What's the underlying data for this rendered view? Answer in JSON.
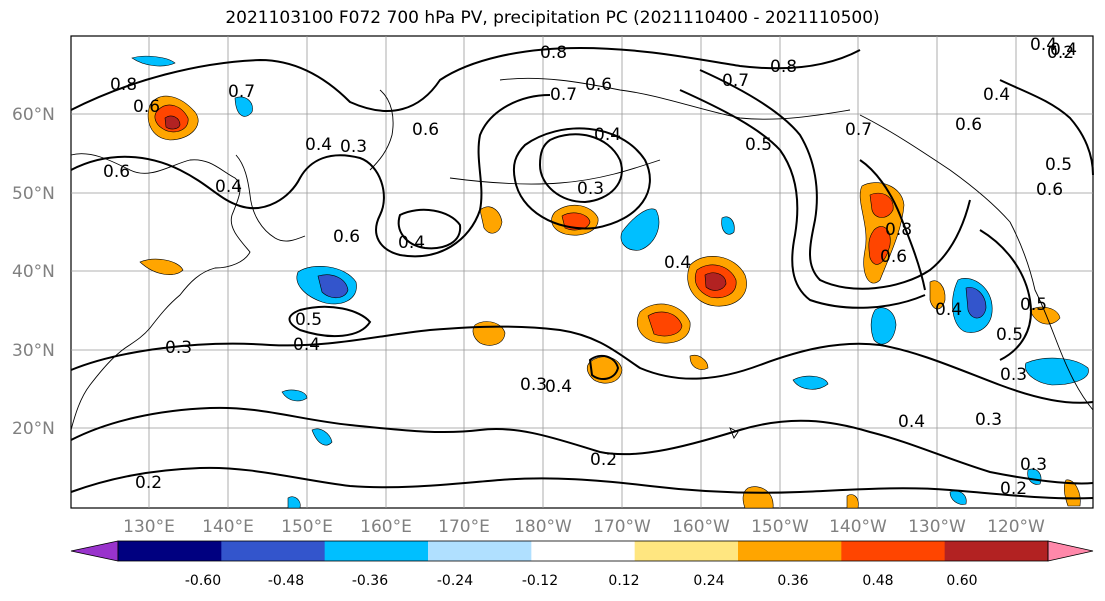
{
  "title": "2021103100 F072 700 hPa PV, precipitation PC (2021110400 - 2021110500)",
  "lat_ticks": [
    "60°N",
    "50°N",
    "40°N",
    "30°N",
    "20°N"
  ],
  "lon_ticks": [
    "130°E",
    "140°E",
    "150°E",
    "160°E",
    "170°E",
    "180°W",
    "170°W",
    "160°W",
    "150°W",
    "140°W",
    "130°W",
    "120°W"
  ],
  "colorbar": {
    "colors": [
      "#9933cc",
      "#000080",
      "#3355cc",
      "#00bfff",
      "#b0e0ff",
      "#ffffff",
      "#ffe680",
      "#ffa500",
      "#ff4500",
      "#b22222",
      "#ff88aa"
    ],
    "tick_labels": [
      "-0.60",
      "-0.48",
      "-0.36",
      "-0.24",
      "-0.12",
      "0.12",
      "0.24",
      "0.36",
      "0.48",
      "0.60"
    ]
  },
  "contour_labels": [
    "0.8",
    "0.6",
    "0.7",
    "0.4",
    "0.3",
    "0.6",
    "0.6",
    "0.4",
    "0.4",
    "0.5",
    "0.3",
    "0.4",
    "0.2",
    "0.8",
    "0.7",
    "0.6",
    "0.4",
    "0.3",
    "0.4",
    "0.5",
    "0.4",
    "0.3",
    "0.2",
    "0.7",
    "0.8",
    "0.7",
    "0.6",
    "0.4",
    "0.5",
    "0.4",
    "0.8",
    "0.6",
    "0.6",
    "0.4",
    "0.5",
    "0.4",
    "0.5",
    "0.3",
    "0.4",
    "0.3",
    "0.2",
    "0.6",
    "0.3",
    "0.2"
  ]
}
